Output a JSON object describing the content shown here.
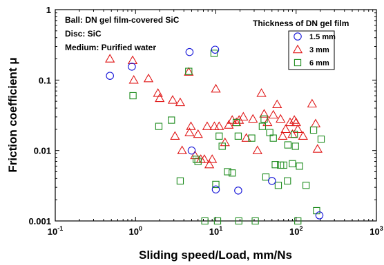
{
  "chart_data": {
    "type": "scatter",
    "title": "",
    "xlabel": "Sliding speed/Load, mm/Ns",
    "ylabel": "Friction coefficient μ",
    "xscale": "log",
    "yscale": "log",
    "xlim": [
      0.1,
      1000
    ],
    "ylim": [
      0.001,
      1
    ],
    "x_ticks": [
      {
        "value": 0.1,
        "base": "10",
        "exp": "-1"
      },
      {
        "value": 1,
        "base": "10",
        "exp": "0"
      },
      {
        "value": 10,
        "base": "10",
        "exp": "1"
      },
      {
        "value": 100,
        "base": "10",
        "exp": "2"
      },
      {
        "value": 1000,
        "base": "10",
        "exp": "3"
      }
    ],
    "y_ticks": [
      {
        "value": 1,
        "label": "1"
      },
      {
        "value": 0.1,
        "label": "0.1"
      },
      {
        "value": 0.01,
        "label": "0.01"
      },
      {
        "value": 0.001,
        "label": "0.001"
      }
    ],
    "annotations": [
      "Ball: DN gel film-covered SiC",
      "Disc: SiC",
      "Medium: Purified water"
    ],
    "legend_title": "Thickness of DN gel film",
    "legend_position": "top-right",
    "grid": false,
    "series": [
      {
        "name": "1.5 mm",
        "marker": "circle",
        "color": "#1414d8",
        "points": [
          [
            0.48,
            0.115
          ],
          [
            0.9,
            0.155
          ],
          [
            4.7,
            0.25
          ],
          [
            5.0,
            0.01
          ],
          [
            9.8,
            0.27
          ],
          [
            10.0,
            0.0028
          ],
          [
            19.0,
            0.0027
          ],
          [
            50.0,
            0.0037
          ],
          [
            195.0,
            0.0012
          ]
        ]
      },
      {
        "name": "3 mm",
        "marker": "triangle",
        "color": "#e01818",
        "points": [
          [
            0.48,
            0.2
          ],
          [
            0.92,
            0.19
          ],
          [
            0.95,
            0.1
          ],
          [
            1.45,
            0.105
          ],
          [
            1.9,
            0.065
          ],
          [
            2.0,
            0.055
          ],
          [
            2.9,
            0.052
          ],
          [
            3.6,
            0.048
          ],
          [
            3.1,
            0.016
          ],
          [
            3.8,
            0.01
          ],
          [
            4.6,
            0.13
          ],
          [
            4.7,
            0.018
          ],
          [
            4.9,
            0.022
          ],
          [
            5.5,
            0.0085
          ],
          [
            6.0,
            0.017
          ],
          [
            6.5,
            0.0075
          ],
          [
            7.2,
            0.0075
          ],
          [
            7.8,
            0.022
          ],
          [
            8.3,
            0.0063
          ],
          [
            9.0,
            0.0075
          ],
          [
            9.6,
            0.022
          ],
          [
            10.0,
            0.075
          ],
          [
            11.0,
            0.022
          ],
          [
            13.0,
            0.013
          ],
          [
            14.5,
            0.023
          ],
          [
            16.0,
            0.027
          ],
          [
            18.0,
            0.025
          ],
          [
            19.5,
            0.027
          ],
          [
            22.0,
            0.03
          ],
          [
            24.0,
            0.015
          ],
          [
            29.0,
            0.028
          ],
          [
            33.0,
            0.01
          ],
          [
            37.0,
            0.065
          ],
          [
            40.0,
            0.033
          ],
          [
            44.0,
            0.025
          ],
          [
            52.0,
            0.032
          ],
          [
            58.0,
            0.045
          ],
          [
            64.0,
            0.028
          ],
          [
            68.0,
            0.016
          ],
          [
            74.0,
            0.02
          ],
          [
            84.0,
            0.025
          ],
          [
            90.0,
            0.017
          ],
          [
            95.0,
            0.027
          ],
          [
            100.0,
            0.025
          ],
          [
            105.0,
            0.02
          ],
          [
            122.0,
            0.016
          ],
          [
            158.0,
            0.046
          ],
          [
            175.0,
            0.024
          ],
          [
            185.0,
            0.0105
          ]
        ]
      },
      {
        "name": "6 mm",
        "marker": "square",
        "color": "#1e8c1e",
        "points": [
          [
            0.93,
            0.06
          ],
          [
            1.95,
            0.022
          ],
          [
            2.8,
            0.027
          ],
          [
            3.6,
            0.0037
          ],
          [
            4.6,
            0.133
          ],
          [
            5.7,
            0.0075
          ],
          [
            6.0,
            0.007
          ],
          [
            7.3,
            0.001
          ],
          [
            9.5,
            0.24
          ],
          [
            10.0,
            0.0033
          ],
          [
            10.5,
            0.001
          ],
          [
            11.0,
            0.016
          ],
          [
            12.0,
            0.0115
          ],
          [
            14.0,
            0.005
          ],
          [
            16.0,
            0.0048
          ],
          [
            18.0,
            0.025
          ],
          [
            19.0,
            0.016
          ],
          [
            19.3,
            0.001
          ],
          [
            28.0,
            0.015
          ],
          [
            31.0,
            0.001
          ],
          [
            38.0,
            0.022
          ],
          [
            40.0,
            0.028
          ],
          [
            42.0,
            0.0042
          ],
          [
            47.0,
            0.018
          ],
          [
            52.0,
            0.015
          ],
          [
            55.0,
            0.0063
          ],
          [
            60.0,
            0.0032
          ],
          [
            64.0,
            0.0062
          ],
          [
            70.0,
            0.0062
          ],
          [
            78.0,
            0.0037
          ],
          [
            79.0,
            0.012
          ],
          [
            90.0,
            0.0065
          ],
          [
            95.0,
            0.017
          ],
          [
            98.0,
            0.0115
          ],
          [
            105.0,
            0.001
          ],
          [
            110.0,
            0.006
          ],
          [
            133.0,
            0.0032
          ],
          [
            165.0,
            0.0195
          ],
          [
            180.0,
            0.0014
          ],
          [
            205.0,
            0.0145
          ]
        ]
      }
    ]
  }
}
